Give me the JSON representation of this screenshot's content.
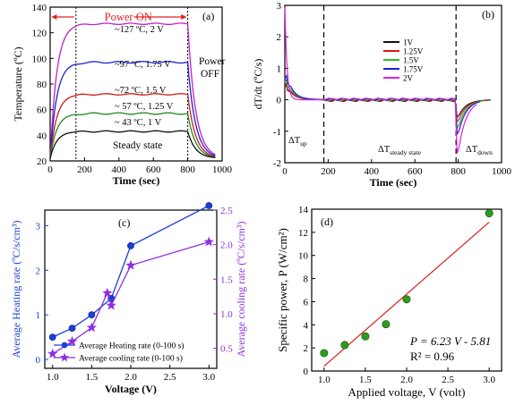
{
  "chart_data": [
    {
      "panel": "(a)",
      "type": "line",
      "xlabel": "Time (sec)",
      "ylabel": "Temperature (ºC)",
      "xlim": [
        0,
        1000
      ],
      "ylim": [
        20,
        140
      ],
      "xticks": [
        0,
        200,
        400,
        600,
        800,
        1000
      ],
      "yticks": [
        20,
        40,
        60,
        80,
        100,
        120,
        140
      ],
      "power_on": {
        "label": "Power  ON",
        "start": 150,
        "end": 800
      },
      "power_off_label": [
        "Power",
        "OFF"
      ],
      "steady_state_label": "Steady state",
      "series": [
        {
          "label": "~127 ºC, 2 V",
          "steady": 127,
          "color": "#c51fc5"
        },
        {
          "label": "~97 ºC, 1.75 V",
          "steady": 97,
          "color": "#1f1fd6"
        },
        {
          "label": "~72 ºC, 1.5 V",
          "steady": 72,
          "color": "#d41a1a"
        },
        {
          "label": "~ 57 ºC, 1.25 V",
          "steady": 57,
          "color": "#1f8a1f"
        },
        {
          "label": "~ 43 ºC, 1 V",
          "steady": 43,
          "color": "#111111"
        }
      ]
    },
    {
      "panel": "(b)",
      "type": "line",
      "xlabel": "Time (sec)",
      "ylabel": "dT/dt (ºC/s)",
      "xlim": [
        0,
        1000
      ],
      "ylim": [
        -2,
        3
      ],
      "xticks": [
        0,
        200,
        400,
        600,
        800,
        1000
      ],
      "yticks": [
        -2,
        -1,
        0,
        1,
        2,
        3
      ],
      "dividers": [
        180,
        790
      ],
      "region_labels": {
        "up": "ΔT",
        "up_sub": "up",
        "steady": "ΔT",
        "steady_sub": "steady state",
        "down": "ΔT",
        "down_sub": "down"
      },
      "series": [
        {
          "name": "1V",
          "color": "#111111",
          "peak": 0.5,
          "trough": -0.55
        },
        {
          "name": "1.25V",
          "color": "#e01515",
          "peak": 0.55,
          "trough": -0.7
        },
        {
          "name": "1.5V",
          "color": "#22c022",
          "peak": 0.7,
          "trough": -0.9
        },
        {
          "name": "1.75V",
          "color": "#1b1bd8",
          "peak": 0.85,
          "trough": -1.1
        },
        {
          "name": "2V",
          "color": "#e020e0",
          "peak": 2.95,
          "trough": -1.7
        }
      ]
    },
    {
      "panel": "(c)",
      "type": "line",
      "xlabel": "Voltage (V)",
      "ylabel_left": "Average Heating rate (ºC/s/cm³)",
      "ylabel_right": "Average cooling rate (ºC/s/cm³)",
      "x": [
        1.0,
        1.25,
        1.5,
        1.75,
        2.0,
        3.0
      ],
      "xlim": [
        0.9,
        3.1
      ],
      "xticks": [
        "1.0",
        "1.5",
        "2.0",
        "2.5",
        "3.0"
      ],
      "ylim_left": [
        -0.2,
        3.35
      ],
      "yticks_left": [
        0,
        1,
        2,
        3
      ],
      "ylim_right": [
        0.21,
        2.5
      ],
      "yticks_right": [
        "0.5",
        "1.0",
        "1.5",
        "2.0",
        "2.5"
      ],
      "series": [
        {
          "name": "Average Heating rate  (0-100 s)",
          "axis": "left",
          "marker": "circle",
          "color": "#1a3fd8",
          "values": [
            0.5,
            0.7,
            1.0,
            1.37,
            2.55,
            3.45
          ]
        },
        {
          "name": "Average cooling rate  (0-100 s)",
          "axis": "right",
          "marker": "star",
          "color": "#8f2fe0",
          "x": [
            1.0,
            1.25,
            1.5,
            1.7,
            1.75,
            2.0,
            3.0
          ],
          "values": [
            0.42,
            0.6,
            0.8,
            1.3,
            1.12,
            1.7,
            2.04
          ]
        }
      ]
    },
    {
      "panel": "(d)",
      "type": "scatter",
      "xlabel": "Applied voltage, V (volt)",
      "ylabel": "Specific power, P (W/cm²)",
      "xlim": [
        0.85,
        3.15
      ],
      "ylim": [
        0,
        14
      ],
      "xticks": [
        "1.0",
        "1.5",
        "2.0",
        "2.5",
        "3.0"
      ],
      "yticks": [
        0,
        2,
        4,
        6,
        8,
        10,
        12,
        14
      ],
      "x": [
        1.0,
        1.25,
        1.5,
        1.75,
        2.0,
        3.0
      ],
      "values": [
        1.55,
        2.25,
        3.0,
        4.05,
        6.2,
        13.65
      ],
      "fit": {
        "slope": 6.23,
        "intercept": -5.81
      },
      "equation": "P = 6.23 V - 5.81",
      "r2": "R² = 0.96",
      "marker_color": "#2e9a22",
      "line_color": "#dd2020"
    }
  ]
}
